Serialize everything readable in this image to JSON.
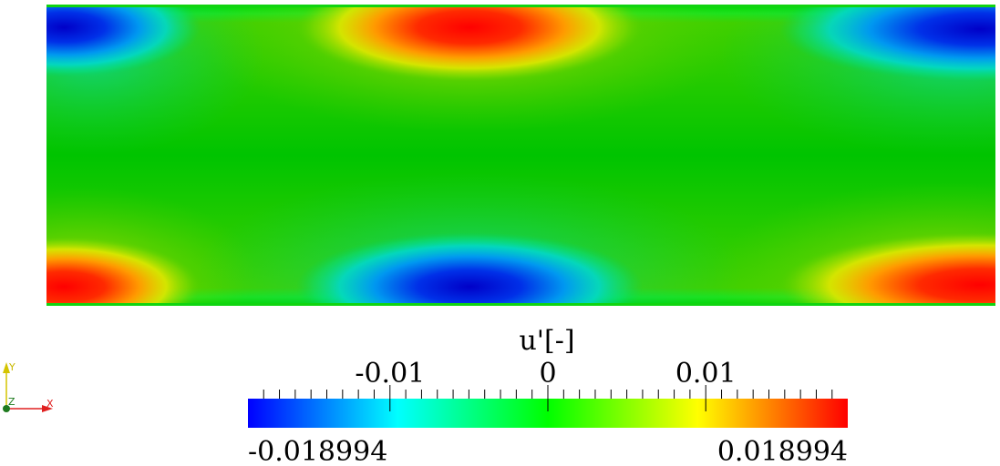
{
  "field": {
    "variable": "u'",
    "amplitude": 0.018994,
    "structure": "two rows of alternating-sign lobes along upper and lower walls"
  },
  "colorbar": {
    "title": "u'[-]",
    "min_label": "-0.018994",
    "max_label": "0.018994",
    "range": [
      -0.018994,
      0.018994
    ],
    "major_ticks": [
      {
        "value": -0.01,
        "label": "-0.01"
      },
      {
        "value": 0,
        "label": "0"
      },
      {
        "value": 0.01,
        "label": "0.01"
      }
    ],
    "minor_step": 0.001,
    "colormap": [
      "#0000ff",
      "#00ffff",
      "#00ff00",
      "#ffff00",
      "#ff0000"
    ]
  },
  "axes_triad": {
    "y_label": "Y",
    "z_label": "Z",
    "x_label": "X",
    "colors": {
      "y": "#d4c400",
      "x": "#e02020",
      "z": "#1e7a1e"
    }
  }
}
